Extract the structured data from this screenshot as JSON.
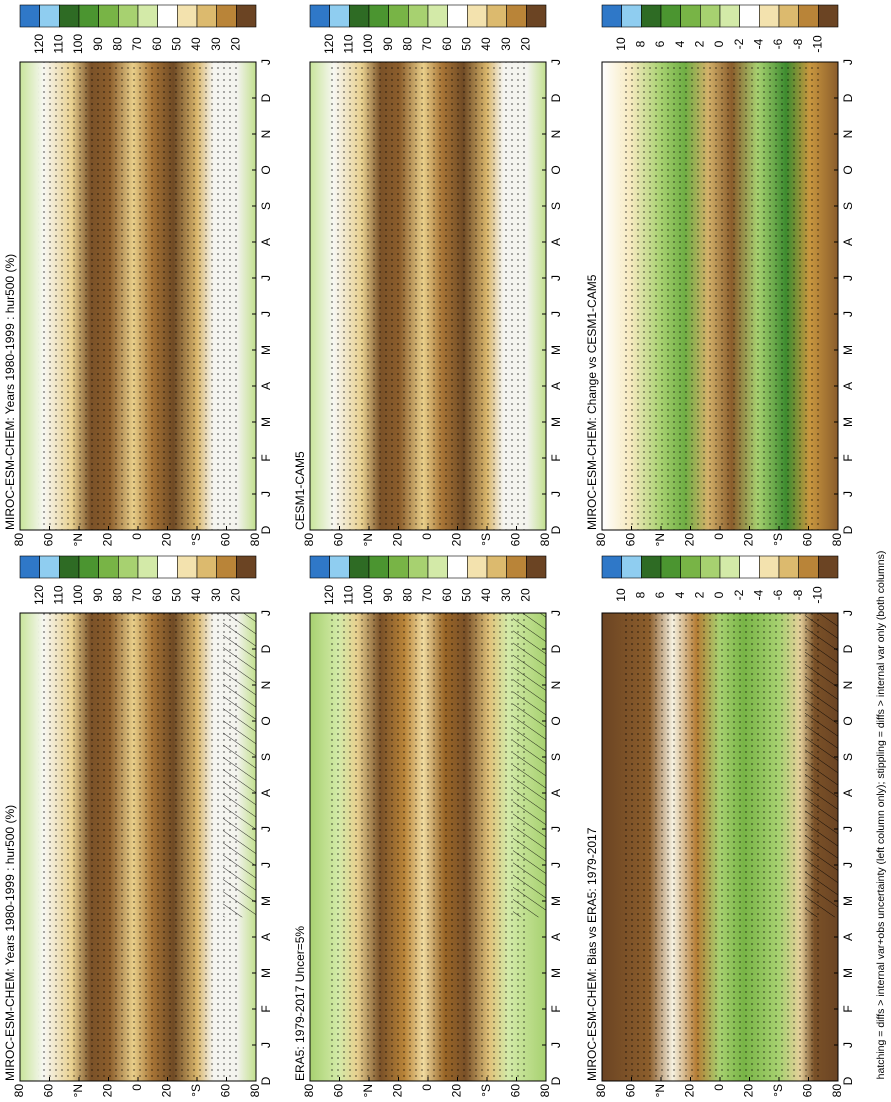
{
  "panels": [
    {
      "title": "MIROC-ESM-CHEM: Years 1980-1999 : hur500 (%)",
      "colorbar_labels": [
        120,
        110,
        100,
        90,
        80,
        70,
        60,
        50,
        40,
        30,
        20
      ]
    },
    {
      "title": "MIROC-ESM-CHEM: Years 1980-1999 : hur500 (%)",
      "colorbar_labels": [
        120,
        110,
        100,
        90,
        80,
        70,
        60,
        50,
        40,
        30,
        20
      ]
    },
    {
      "title": "CESM1-CAM5",
      "colorbar_labels": [
        120,
        110,
        100,
        90,
        80,
        70,
        60,
        50,
        40,
        30,
        20
      ]
    },
    {
      "title": "ERA5: 1979-2017 Uncer=5%",
      "colorbar_labels": [
        120,
        110,
        100,
        90,
        80,
        70,
        60,
        50,
        40,
        30,
        20
      ]
    },
    {
      "title": "MIROC-ESM-CHEM: Change vs CESM1-CAM5",
      "colorbar_labels": [
        10,
        8,
        6,
        4,
        2,
        0,
        -2,
        -4,
        -6,
        -8,
        -10
      ]
    },
    {
      "title": "MIROC-ESM-CHEM: Bias vs ERA5: 1979-2017",
      "colorbar_labels": [
        10,
        8,
        6,
        4,
        2,
        0,
        -2,
        -4,
        -6,
        -8,
        -10
      ]
    }
  ],
  "months": [
    "D",
    "J",
    "F",
    "M",
    "A",
    "M",
    "J",
    "J",
    "A",
    "S",
    "O",
    "N",
    "D",
    "J"
  ],
  "latitudes": [
    "80",
    "60",
    "°N",
    "20",
    "0",
    "20",
    "°S",
    "60",
    "80"
  ],
  "footnote": "hatching = diffs > internal var+obs uncertainty (left column only); stippling = diffs > internal var only (both columns)"
}
